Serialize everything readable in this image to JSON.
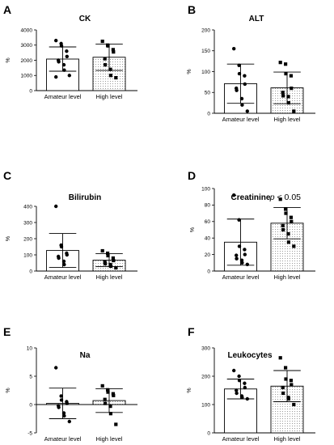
{
  "chart_data": [
    {
      "panel": "A",
      "title": "CK",
      "type": "bar",
      "ylabel": "%",
      "categories": [
        "Amateur level",
        "High level"
      ],
      "ylim": [
        0,
        4000
      ],
      "yticks": [
        0,
        1000,
        2000,
        3000,
        4000
      ],
      "values": [
        2080,
        2200
      ],
      "sd": [
        800,
        870
      ],
      "points": [
        [
          3300,
          3100,
          2950,
          2600,
          2250,
          2000,
          1900,
          1700,
          1350,
          1000,
          900
        ],
        [
          3250,
          3000,
          2950,
          2700,
          2550,
          2100,
          1700,
          1400,
          1000,
          850
        ]
      ],
      "annotation": ""
    },
    {
      "panel": "B",
      "title": "ALT",
      "type": "bar",
      "ylabel": "%",
      "categories": [
        "Amateur level",
        "High level"
      ],
      "ylim": [
        0,
        200
      ],
      "yticks": [
        0,
        50,
        100,
        150,
        200
      ],
      "values": [
        71,
        61
      ],
      "sd": [
        47,
        38
      ],
      "points": [
        [
          155,
          115,
          95,
          90,
          70,
          60,
          55,
          35,
          20,
          5
        ],
        [
          122,
          118,
          95,
          90,
          60,
          50,
          42,
          40,
          25,
          5
        ]
      ],
      "annotation": ""
    },
    {
      "panel": "C",
      "title": "Bilirubin",
      "type": "bar",
      "ylabel": "%",
      "categories": [
        "Amateur level",
        "High level"
      ],
      "ylim": [
        0,
        400
      ],
      "yticks": [
        0,
        100,
        200,
        300,
        400
      ],
      "values": [
        127,
        67
      ],
      "sd": [
        105,
        40
      ],
      "points": [
        [
          400,
          160,
          150,
          110,
          100,
          90,
          80,
          60,
          40
        ],
        [
          125,
          110,
          95,
          80,
          65,
          55,
          45,
          40,
          30,
          20
        ]
      ],
      "annotation": ""
    },
    {
      "panel": "D",
      "title": "Creatinine",
      "type": "bar",
      "ylabel": "%",
      "categories": [
        "Amateur level",
        "High level"
      ],
      "ylim": [
        0,
        100
      ],
      "yticks": [
        0,
        20,
        40,
        60,
        80,
        100
      ],
      "values": [
        35,
        58
      ],
      "sd": [
        28,
        19
      ],
      "points": [
        [
          92,
          62,
          30,
          26,
          20,
          19,
          15,
          13,
          10,
          8
        ],
        [
          87,
          75,
          70,
          65,
          60,
          55,
          50,
          45,
          35,
          30
        ]
      ],
      "annotation": "p < 0.05"
    },
    {
      "panel": "E",
      "title": "Na",
      "type": "bar",
      "ylabel": "%",
      "categories": [
        "Amateur level",
        "High level"
      ],
      "ylim": [
        -5,
        10
      ],
      "yticks": [
        -5,
        0,
        5,
        10
      ],
      "values": [
        0.2,
        0.7
      ],
      "sd": [
        2.7,
        2.1
      ],
      "points": [
        [
          6.5,
          1.5,
          0.8,
          0.5,
          0.2,
          -0.2,
          -0.5,
          -1.5,
          -2.0,
          -3.0
        ],
        [
          3.3,
          2.6,
          2.2,
          1.9,
          1.6,
          0.9,
          0.2,
          -0.3,
          -1.6,
          -3.5
        ]
      ],
      "annotation": ""
    },
    {
      "panel": "F",
      "title": "Leukocytes",
      "type": "bar",
      "ylabel": "%",
      "categories": [
        "Amateur level",
        "High level"
      ],
      "ylim": [
        0,
        300
      ],
      "yticks": [
        0,
        100,
        200,
        300
      ],
      "values": [
        155,
        165
      ],
      "sd": [
        35,
        55
      ],
      "points": [
        [
          220,
          200,
          185,
          175,
          160,
          150,
          140,
          130,
          125,
          120
        ],
        [
          265,
          230,
          190,
          185,
          170,
          160,
          140,
          125,
          120,
          100
        ]
      ],
      "annotation": ""
    }
  ]
}
